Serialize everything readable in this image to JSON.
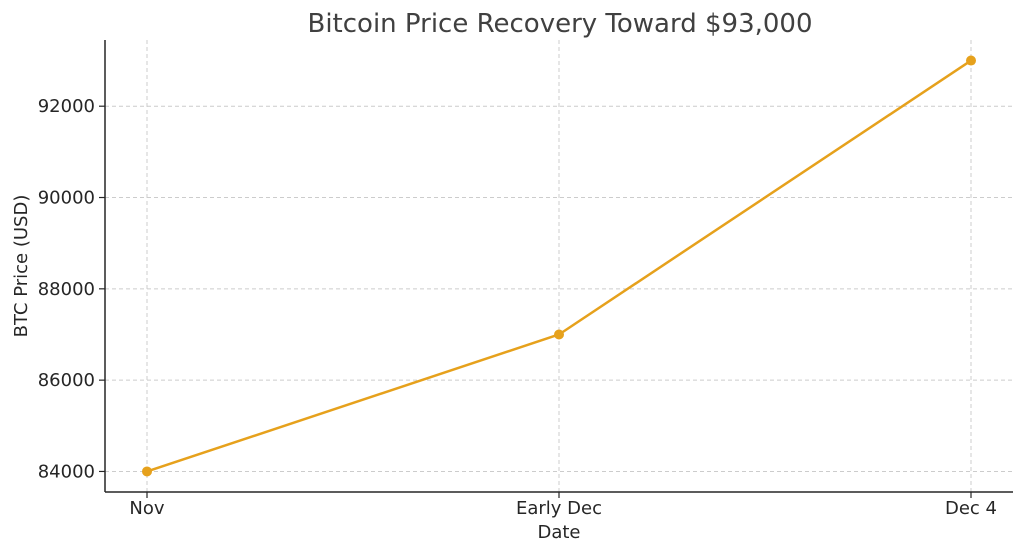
{
  "chart_data": {
    "type": "line",
    "title": "Bitcoin Price Recovery Toward $93,000",
    "xlabel": "Date",
    "ylabel": "BTC Price (USD)",
    "categories": [
      "Nov",
      "Early Dec",
      "Dec 4"
    ],
    "series": [
      {
        "values": [
          84000,
          87000,
          93000
        ],
        "color": "#e6a11c"
      }
    ],
    "yticks": [
      84000,
      86000,
      88000,
      90000,
      92000
    ],
    "ylim": [
      83550,
      93450
    ],
    "grid": true,
    "legend": "none",
    "markers": true
  }
}
